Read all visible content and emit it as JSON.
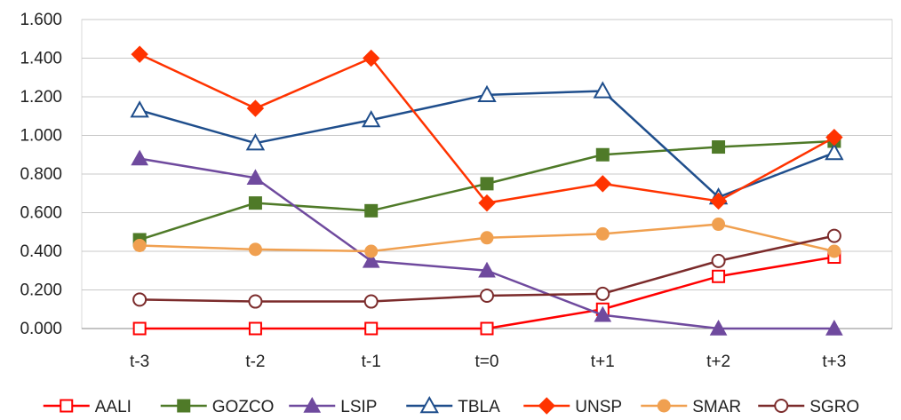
{
  "chart_data": {
    "type": "line",
    "categories": [
      "t-3",
      "t-2",
      "t-1",
      "t=0",
      "t+1",
      "t+2",
      "t+3"
    ],
    "y_ticks": [
      "0.000",
      "0.200",
      "0.400",
      "0.600",
      "0.800",
      "1.000",
      "1.200",
      "1.400",
      "1.600"
    ],
    "ylim": [
      0,
      1.6
    ],
    "grid": "horizontal",
    "legend_position": "bottom",
    "series": [
      {
        "name": "AALI",
        "color": "#ff0000",
        "marker": "square-open",
        "values": [
          0.0,
          0.0,
          0.0,
          0.0,
          0.1,
          0.27,
          0.37
        ]
      },
      {
        "name": "GOZCO",
        "color": "#4f7a28",
        "marker": "square-filled",
        "values": [
          0.46,
          0.65,
          0.61,
          0.75,
          0.9,
          0.94,
          0.97
        ]
      },
      {
        "name": "LSIP",
        "color": "#6f4a9e",
        "marker": "triangle-filled",
        "values": [
          0.88,
          0.78,
          0.35,
          0.3,
          0.07,
          0.0,
          0.0
        ]
      },
      {
        "name": "TBLA",
        "color": "#1f4e8c",
        "marker": "triangle-open",
        "values": [
          1.13,
          0.96,
          1.08,
          1.21,
          1.23,
          0.68,
          0.91
        ]
      },
      {
        "name": "UNSP",
        "color": "#ff3300",
        "marker": "diamond-filled",
        "values": [
          1.42,
          1.14,
          1.4,
          0.65,
          0.75,
          0.66,
          0.99
        ]
      },
      {
        "name": "SMAR",
        "color": "#f0a050",
        "marker": "circle-filled",
        "values": [
          0.43,
          0.41,
          0.4,
          0.47,
          0.49,
          0.54,
          0.4
        ]
      },
      {
        "name": "SGRO",
        "color": "#7b2b2b",
        "marker": "circle-open",
        "values": [
          0.15,
          0.14,
          0.14,
          0.17,
          0.18,
          0.35,
          0.48
        ]
      }
    ]
  }
}
